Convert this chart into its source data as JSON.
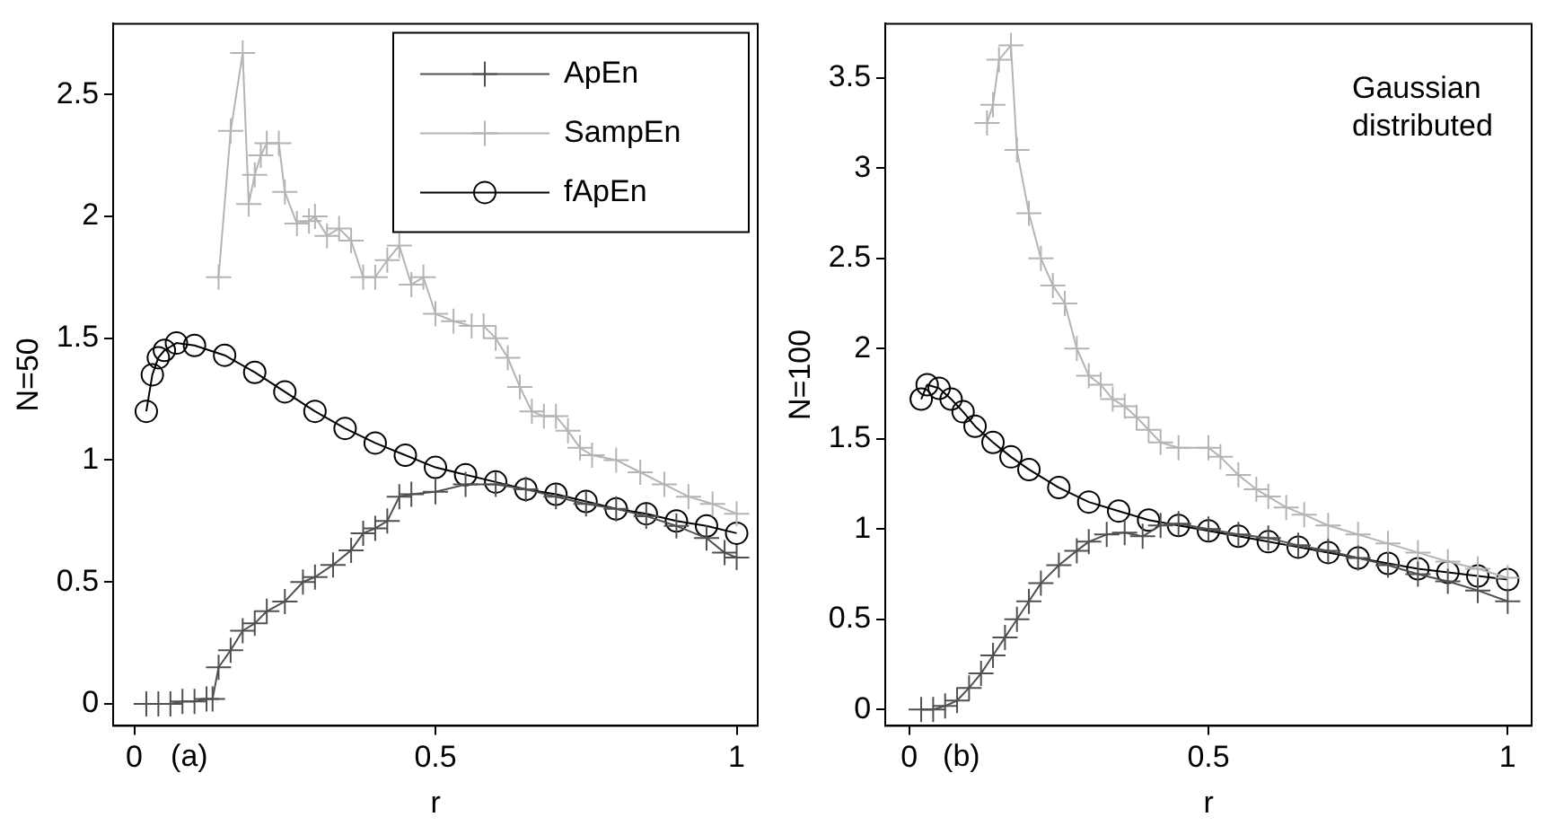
{
  "chart_data": [
    {
      "type": "line",
      "xlabel": "r",
      "ylabel": "N=50",
      "xlim": [
        -0.035,
        1.035
      ],
      "ylim": [
        -0.09,
        2.79
      ],
      "xticks": [
        0,
        0.5,
        1
      ],
      "yticks": [
        0,
        0.5,
        1,
        1.5,
        2,
        2.5
      ],
      "grid": false,
      "legend": "top right",
      "annotations": [
        "(a)"
      ],
      "series": [
        {
          "name": "ApEn",
          "color": "#505050",
          "marker": "cross",
          "x": [
            0.02,
            0.04,
            0.06,
            0.08,
            0.1,
            0.12,
            0.13,
            0.14,
            0.16,
            0.18,
            0.2,
            0.22,
            0.25,
            0.28,
            0.3,
            0.33,
            0.36,
            0.38,
            0.4,
            0.42,
            0.44,
            0.46,
            0.5,
            0.55,
            0.6,
            0.65,
            0.7,
            0.75,
            0.8,
            0.85,
            0.9,
            0.95,
            0.98,
            1.0
          ],
          "values": [
            0,
            0,
            0,
            0.01,
            0.01,
            0.02,
            0.02,
            0.15,
            0.22,
            0.3,
            0.33,
            0.38,
            0.42,
            0.5,
            0.52,
            0.57,
            0.63,
            0.7,
            0.72,
            0.75,
            0.85,
            0.86,
            0.87,
            0.9,
            0.9,
            0.88,
            0.85,
            0.82,
            0.8,
            0.77,
            0.73,
            0.68,
            0.62,
            0.6
          ]
        },
        {
          "name": "SampEn",
          "color": "#b4b4b4",
          "marker": "cross",
          "x": [
            0.14,
            0.16,
            0.18,
            0.19,
            0.2,
            0.21,
            0.22,
            0.24,
            0.25,
            0.27,
            0.29,
            0.3,
            0.32,
            0.34,
            0.36,
            0.38,
            0.4,
            0.42,
            0.44,
            0.46,
            0.48,
            0.5,
            0.53,
            0.56,
            0.58,
            0.6,
            0.62,
            0.64,
            0.66,
            0.68,
            0.7,
            0.72,
            0.74,
            0.76,
            0.8,
            0.84,
            0.88,
            0.92,
            0.96,
            1.0
          ],
          "values": [
            1.75,
            2.35,
            2.67,
            2.05,
            2.17,
            2.25,
            2.3,
            2.3,
            2.1,
            1.97,
            1.98,
            2.0,
            1.92,
            1.95,
            1.9,
            1.75,
            1.75,
            1.82,
            1.88,
            1.72,
            1.75,
            1.6,
            1.57,
            1.55,
            1.55,
            1.5,
            1.42,
            1.3,
            1.2,
            1.18,
            1.18,
            1.12,
            1.05,
            1.02,
            1.0,
            0.95,
            0.9,
            0.85,
            0.82,
            0.78
          ]
        },
        {
          "name": "fApEn",
          "color": "#000000",
          "marker": "circle",
          "x": [
            0.02,
            0.03,
            0.04,
            0.05,
            0.07,
            0.1,
            0.15,
            0.2,
            0.25,
            0.3,
            0.35,
            0.4,
            0.45,
            0.5,
            0.55,
            0.6,
            0.65,
            0.7,
            0.75,
            0.8,
            0.85,
            0.9,
            0.95,
            1.0
          ],
          "values": [
            1.2,
            1.35,
            1.42,
            1.45,
            1.48,
            1.47,
            1.43,
            1.36,
            1.28,
            1.2,
            1.13,
            1.07,
            1.02,
            0.97,
            0.94,
            0.91,
            0.88,
            0.86,
            0.83,
            0.8,
            0.78,
            0.75,
            0.73,
            0.7
          ]
        }
      ]
    },
    {
      "type": "line",
      "xlabel": "r",
      "ylabel": "N=100",
      "xlim": [
        -0.04,
        1.04
      ],
      "ylim": [
        -0.09,
        3.8
      ],
      "xticks": [
        0,
        0.5,
        1
      ],
      "yticks": [
        0,
        0.5,
        1,
        1.5,
        2,
        2.5,
        3,
        3.5
      ],
      "grid": false,
      "annotations": [
        "(b)",
        "Gaussian distributed"
      ],
      "series": [
        {
          "color": "#505050",
          "marker": "cross",
          "x": [
            0.02,
            0.04,
            0.06,
            0.08,
            0.1,
            0.12,
            0.14,
            0.16,
            0.18,
            0.2,
            0.22,
            0.25,
            0.28,
            0.3,
            0.33,
            0.36,
            0.39,
            0.42,
            0.45,
            0.5,
            0.55,
            0.6,
            0.65,
            0.7,
            0.75,
            0.8,
            0.85,
            0.9,
            0.95,
            1.0
          ],
          "values": [
            0,
            0,
            0.02,
            0.05,
            0.12,
            0.2,
            0.3,
            0.4,
            0.5,
            0.6,
            0.7,
            0.8,
            0.88,
            0.93,
            0.97,
            0.98,
            0.96,
            1.02,
            1.03,
            1.0,
            0.97,
            0.95,
            0.91,
            0.88,
            0.84,
            0.8,
            0.75,
            0.71,
            0.66,
            0.6
          ]
        },
        {
          "color": "#b4b4b4",
          "marker": "cross",
          "x": [
            0.13,
            0.14,
            0.15,
            0.17,
            0.18,
            0.2,
            0.22,
            0.24,
            0.26,
            0.28,
            0.3,
            0.32,
            0.34,
            0.36,
            0.38,
            0.4,
            0.42,
            0.45,
            0.5,
            0.52,
            0.55,
            0.58,
            0.6,
            0.63,
            0.66,
            0.7,
            0.75,
            0.8,
            0.85,
            0.9,
            0.95,
            1.0
          ],
          "values": [
            3.25,
            3.35,
            3.6,
            3.68,
            3.1,
            2.75,
            2.5,
            2.35,
            2.25,
            2.0,
            1.85,
            1.8,
            1.72,
            1.68,
            1.62,
            1.55,
            1.48,
            1.45,
            1.45,
            1.4,
            1.3,
            1.22,
            1.18,
            1.12,
            1.08,
            1.02,
            0.97,
            0.92,
            0.87,
            0.82,
            0.78,
            0.73
          ]
        },
        {
          "color": "#000000",
          "marker": "circle",
          "x": [
            0.02,
            0.03,
            0.05,
            0.07,
            0.09,
            0.11,
            0.14,
            0.17,
            0.2,
            0.25,
            0.3,
            0.35,
            0.4,
            0.45,
            0.5,
            0.55,
            0.6,
            0.65,
            0.7,
            0.75,
            0.8,
            0.85,
            0.9,
            0.95,
            1.0
          ],
          "values": [
            1.72,
            1.8,
            1.78,
            1.72,
            1.65,
            1.57,
            1.48,
            1.4,
            1.33,
            1.23,
            1.15,
            1.1,
            1.05,
            1.02,
            0.99,
            0.96,
            0.93,
            0.9,
            0.87,
            0.84,
            0.81,
            0.78,
            0.76,
            0.74,
            0.72
          ]
        }
      ]
    }
  ]
}
